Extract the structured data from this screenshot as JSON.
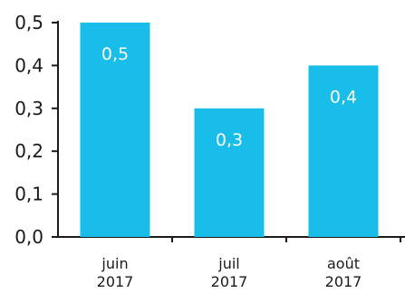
{
  "chart_data": {
    "type": "bar",
    "categories": [
      {
        "line1": "juin",
        "line2": "2017"
      },
      {
        "line1": "juil",
        "line2": "2017"
      },
      {
        "line1": "août",
        "line2": "2017"
      }
    ],
    "values": [
      0.5,
      0.3,
      0.4
    ],
    "data_labels": [
      "0,5",
      "0,3",
      "0,4"
    ],
    "ylim": [
      0,
      0.5
    ],
    "yticks": [
      {
        "value": 0.0,
        "label": "0,0"
      },
      {
        "value": 0.1,
        "label": "0,1"
      },
      {
        "value": 0.2,
        "label": "0,2"
      },
      {
        "value": 0.3,
        "label": "0,3"
      },
      {
        "value": 0.4,
        "label": "0,4"
      },
      {
        "value": 0.5,
        "label": "0,5"
      }
    ],
    "grid": false,
    "bar_color": "#19bdea",
    "axis_color": "#1a1a1a",
    "title": "",
    "xlabel": "",
    "ylabel": ""
  }
}
